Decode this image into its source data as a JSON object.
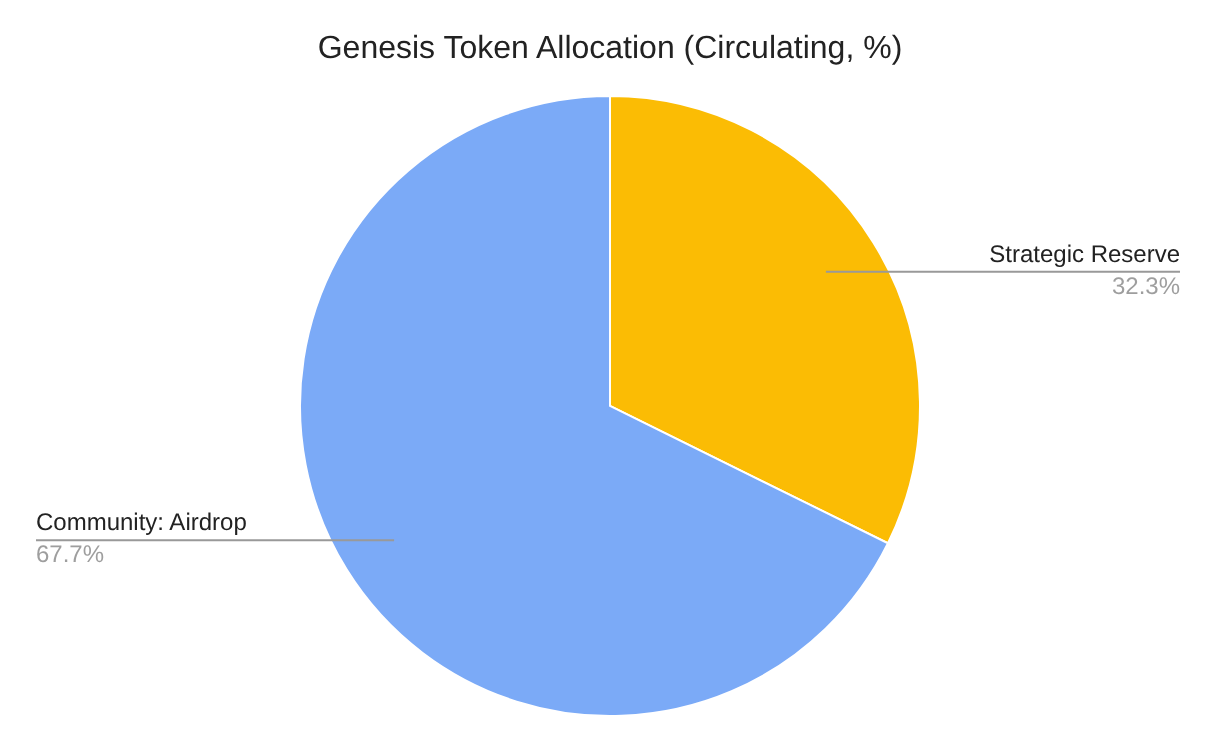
{
  "chart_data": {
    "type": "pie",
    "title": "Genesis Token Allocation (Circulating, %)",
    "categories": [
      "Strategic Reserve",
      "Community: Airdrop"
    ],
    "values": [
      32.3,
      67.7
    ],
    "value_labels": [
      "32.3%",
      "67.7%"
    ],
    "colors": [
      "#fbbc04",
      "#7baaf7"
    ]
  }
}
